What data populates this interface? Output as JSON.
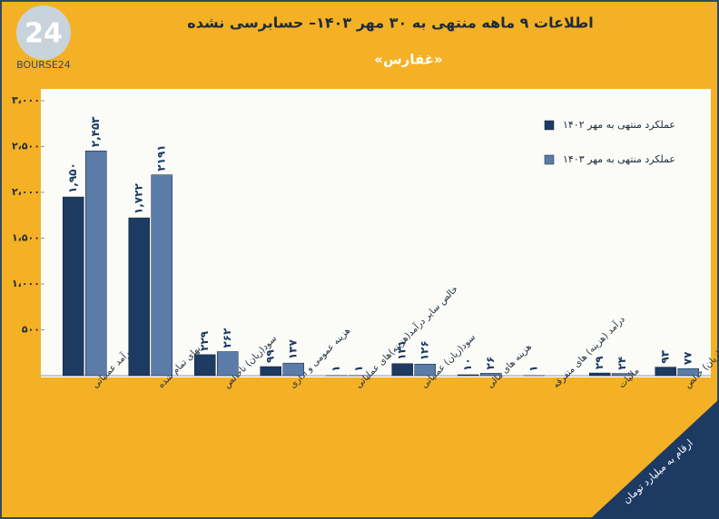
{
  "chart_data": {
    "type": "bar",
    "title": "اطلاعات ۹ ماهه منتهی به ۳۰ مهر ۱۴۰۳– حسابرسی نشده",
    "subtitle": "«غفارس»",
    "logo_text": "BOURSE24",
    "note": "ارقام به میلیارد تومان",
    "categories": [
      "درآمد عملیاتی",
      "بهای تمام شده",
      "سود(زیان) ناخالص",
      "هزینه عمومی و اداری",
      "خالص سایر درآمد(هزینه)های عملیاتی",
      "سود(زیان) عملیاتی",
      "هزینه های مالی",
      "درآمد (هزینه) های متفرقه",
      "مالیات",
      "سود(زیان) خالص"
    ],
    "series": [
      {
        "name": "عملکرد منتهی به مهر ۱۴۰۲",
        "color": "#1d3a63",
        "values": [
          1950,
          1722,
          229,
          99,
          1,
          131,
          10,
          1,
          29,
          93
        ],
        "value_labels": [
          "۱,۹۵۰",
          "۱,۷۲۲",
          "۲۲۹",
          "۹۹",
          "۱",
          "۱۳۱",
          "۱۰",
          "۱",
          "۲۹",
          "۹۳"
        ]
      },
      {
        "name": "عملکرد منتهی به مهر ۱۴۰۳",
        "color": "#5b7ca8",
        "values": [
          2453,
          2191,
          262,
          137,
          1,
          126,
          26,
          null,
          24,
          77
        ],
        "value_labels": [
          "۲,۴۵۳",
          "۲۱۹۱",
          "۲۶۲",
          "۱۳۷",
          "۱",
          "۱۲۶",
          "۲۶",
          null,
          "۲۴",
          "۷۷"
        ]
      }
    ],
    "ylim": [
      0,
      3000
    ],
    "yticks": [
      {
        "value": 500,
        "label": "۵۰۰"
      },
      {
        "value": 1000,
        "label": "۱،۰۰۰"
      },
      {
        "value": 1500,
        "label": "۱،۵۰۰"
      },
      {
        "value": 2000,
        "label": "۲،۰۰۰"
      },
      {
        "value": 2500,
        "label": "۲،۵۰۰"
      },
      {
        "value": 3000,
        "label": "۳،۰۰۰"
      }
    ],
    "grid": false,
    "legend": "top-right"
  }
}
